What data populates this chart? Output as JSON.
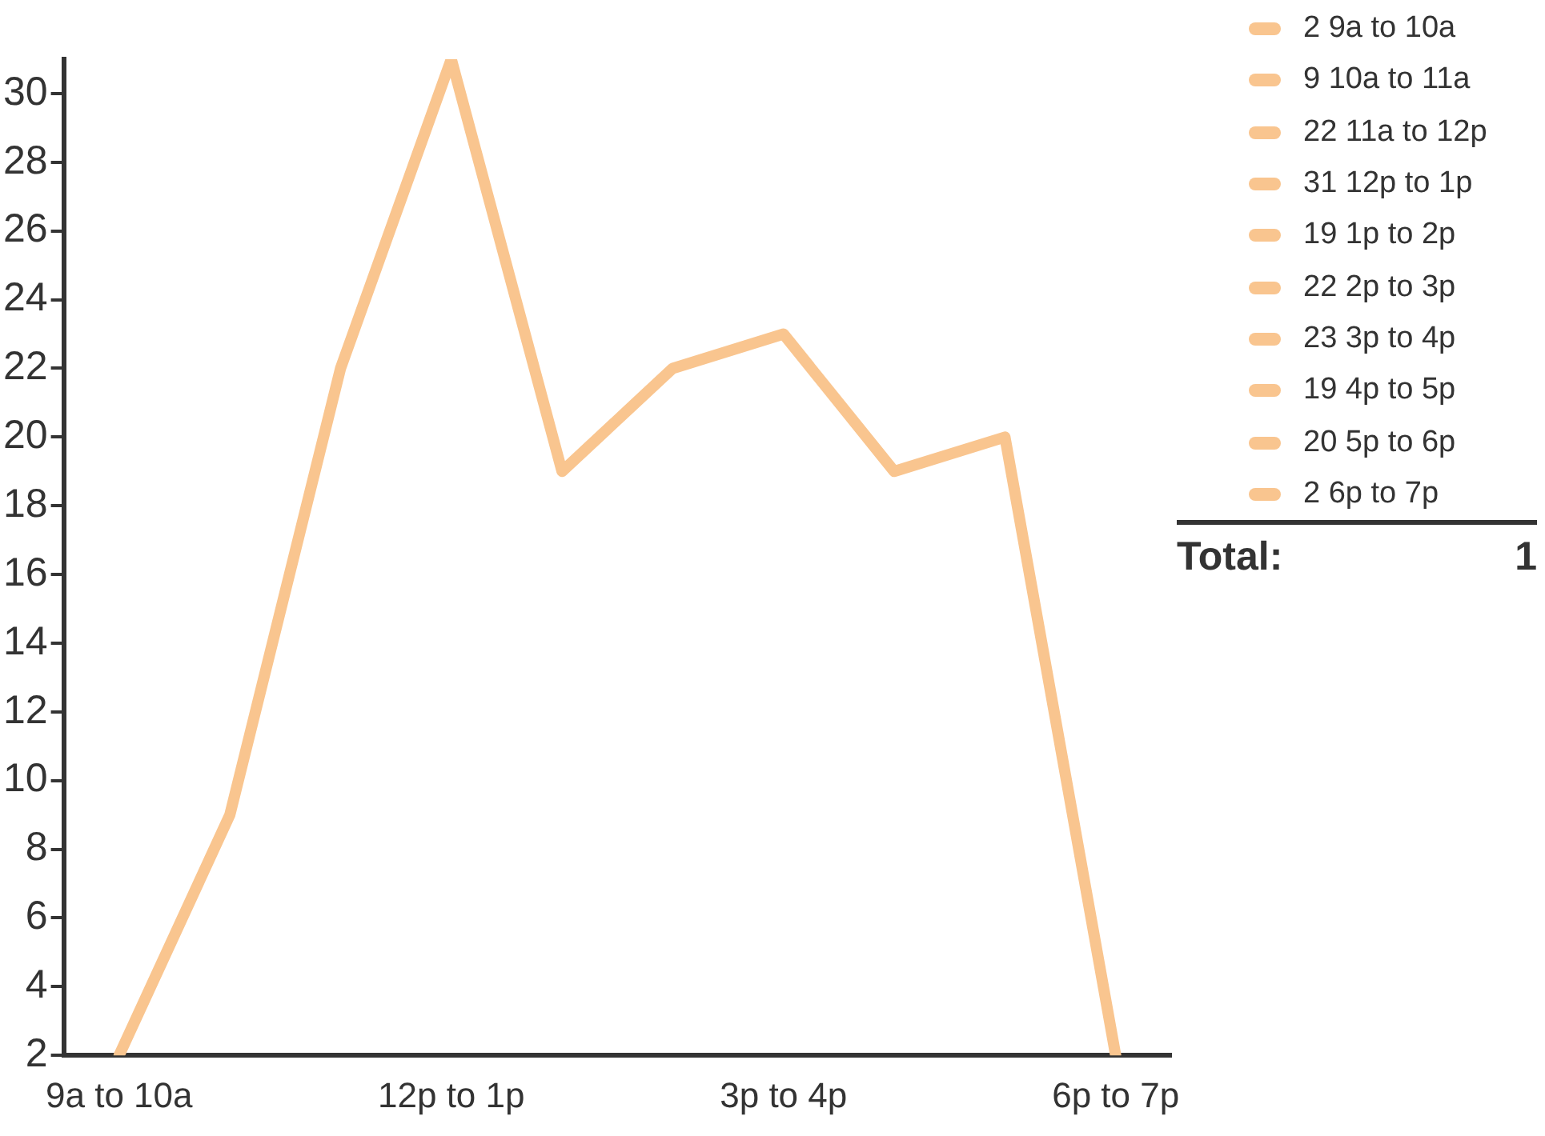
{
  "chart_data": {
    "type": "line",
    "categories": [
      "9a to 10a",
      null,
      null,
      "12p to 1p",
      null,
      null,
      "3p to 4p",
      null,
      null,
      "6p to 7p"
    ],
    "series": [
      {
        "color": "#f9c58f",
        "values": [
          2,
          9,
          22,
          31,
          19,
          22,
          23,
          19,
          20,
          2
        ]
      }
    ],
    "ylim": [
      2,
      31
    ],
    "yticks": [
      2,
      4,
      6,
      8,
      10,
      12,
      14,
      16,
      18,
      20,
      22,
      24,
      26,
      28,
      30
    ],
    "grid": false,
    "legend": false,
    "marker": "none",
    "line_style": "solid",
    "annotations": [
      "2 9a to 10a",
      "9 10a to 11a",
      "22 11a to 12p",
      "31 12p to 1p",
      "19 1p to 2p",
      "22 2p to 3p",
      "23 3p to 4p",
      "19 4p to 5p",
      "20 5p to 6p",
      "2 6p to 7p",
      "Total:",
      "1"
    ]
  }
}
